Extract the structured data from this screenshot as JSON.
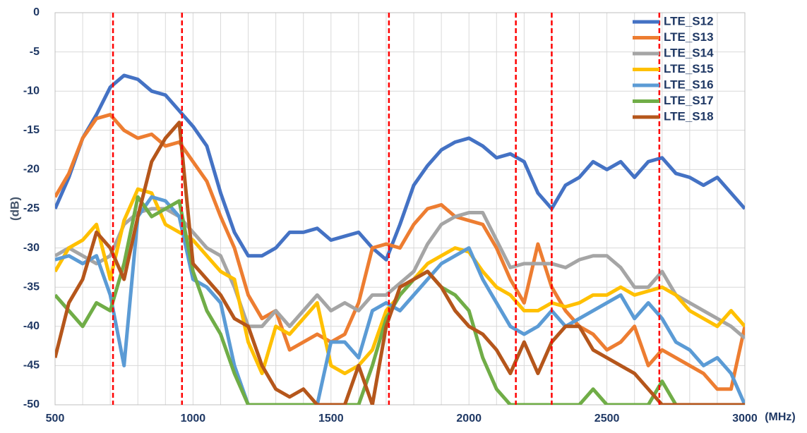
{
  "chart_data": {
    "type": "line",
    "x_label": "(MHz)",
    "y_label": "(dB)",
    "x": [
      500,
      550,
      600,
      650,
      700,
      750,
      800,
      850,
      900,
      950,
      1000,
      1050,
      1100,
      1150,
      1200,
      1250,
      1300,
      1350,
      1400,
      1450,
      1500,
      1550,
      1600,
      1650,
      1700,
      1750,
      1800,
      1850,
      1900,
      1950,
      2000,
      2050,
      2100,
      2150,
      2200,
      2250,
      2300,
      2350,
      2400,
      2450,
      2500,
      2550,
      2600,
      2650,
      2700,
      2750,
      2800,
      2850,
      2900,
      2950,
      3000
    ],
    "series": [
      {
        "name": "LTE_S12",
        "color": "#4472c4",
        "values": [
          -25,
          -21,
          -16,
          -13,
          -9.5,
          -8,
          -8.5,
          -10,
          -10.5,
          -12.5,
          -14.5,
          -17,
          -23,
          -28,
          -31,
          -31,
          -30,
          -28,
          -28,
          -27.5,
          -29,
          -28.5,
          -28,
          -30,
          -31.5,
          -27,
          -22,
          -19.5,
          -17.5,
          -16.5,
          -16,
          -17,
          -18.5,
          -18,
          -19,
          -23,
          -25,
          -22,
          -21,
          -19,
          -20,
          -19,
          -21,
          -19,
          -18.5,
          -20.5,
          -21,
          -22,
          -21,
          -23,
          -25
        ]
      },
      {
        "name": "LTE_S13",
        "color": "#ed7d31",
        "values": [
          -23.5,
          -20.5,
          -16,
          -13.5,
          -13,
          -15,
          -16,
          -15.5,
          -17,
          -16.5,
          -19,
          -21.5,
          -26,
          -30,
          -36,
          -39,
          -38,
          -43,
          -42,
          -41,
          -42,
          -41,
          -37,
          -30,
          -29.5,
          -30,
          -27,
          -25,
          -24.5,
          -26,
          -26.5,
          -27,
          -30,
          -34,
          -37,
          -29.5,
          -35,
          -38,
          -40,
          -41,
          -43,
          -42,
          -40,
          -45,
          -43,
          -44,
          -45,
          -46,
          -48,
          -48,
          -40
        ]
      },
      {
        "name": "LTE_S14",
        "color": "#a5a5a5",
        "values": [
          -31,
          -30,
          -31,
          -32,
          -31,
          -27,
          -25.5,
          -25,
          -25,
          -26,
          -28,
          -30,
          -31,
          -35,
          -40,
          -40,
          -38,
          -40,
          -38,
          -36,
          -38,
          -37,
          -38,
          -36,
          -36,
          -34.5,
          -33,
          -29.5,
          -27,
          -26,
          -25.5,
          -25.5,
          -29,
          -32.5,
          -32,
          -32,
          -32,
          -32.5,
          -31.5,
          -31,
          -31,
          -32.5,
          -35,
          -35,
          -33,
          -36,
          -37,
          -38,
          -39,
          -40,
          -41.5
        ]
      },
      {
        "name": "LTE_S15",
        "color": "#ffc000",
        "values": [
          -33,
          -30,
          -29,
          -27,
          -34,
          -26.5,
          -22.5,
          -23,
          -27,
          -28,
          -29,
          -31,
          -33,
          -34,
          -42,
          -46,
          -40,
          -41,
          -39,
          -37,
          -45,
          -46,
          -45,
          -43,
          -38,
          -36,
          -34,
          -32,
          -31,
          -30,
          -30.5,
          -33,
          -35,
          -36,
          -38,
          -38,
          -37,
          -37.5,
          -37,
          -36,
          -36,
          -35,
          -36,
          -35.5,
          -35,
          -36,
          -38,
          -39,
          -40,
          -38,
          -40
        ]
      },
      {
        "name": "LTE_S16",
        "color": "#5b9bd5",
        "values": [
          -31.5,
          -31,
          -32,
          -31,
          -36,
          -45,
          -26,
          -23.5,
          -24,
          -26,
          -34,
          -35,
          -37,
          -45,
          -50,
          -50,
          -50,
          -50,
          -50,
          -50,
          -42,
          -42,
          -44,
          -38,
          -37,
          -38,
          -36,
          -34,
          -32,
          -31,
          -30,
          -34,
          -37,
          -40,
          -41,
          -40,
          -38,
          -40,
          -39,
          -38,
          -37,
          -36,
          -39,
          -37,
          -39,
          -42,
          -43,
          -45,
          -44,
          -46,
          -50
        ]
      },
      {
        "name": "LTE_S17",
        "color": "#70ad47",
        "values": [
          -36,
          -38,
          -40,
          -37,
          -38,
          -32,
          -23.5,
          -26,
          -25,
          -24,
          -33,
          -38,
          -41,
          -46,
          -50,
          -50,
          -50,
          -50,
          -50,
          -50,
          -50,
          -50,
          -50,
          -45,
          -39,
          -36,
          -34,
          -33,
          -35,
          -36,
          -38,
          -44,
          -48,
          -50,
          -50,
          -50,
          -50,
          -50,
          -50,
          -48,
          -50,
          -50,
          -50,
          -50,
          -47,
          -50,
          -50,
          -50,
          -50,
          -50,
          -50
        ]
      },
      {
        "name": "LTE_S18",
        "color": "#b5561b",
        "values": [
          -44,
          -37,
          -34,
          -28,
          -30,
          -34,
          -26,
          -19,
          -16,
          -14,
          -32,
          -34,
          -36,
          -39,
          -40,
          -45,
          -48,
          -49,
          -48,
          -50,
          -50,
          -50,
          -45,
          -50,
          -40,
          -35,
          -34,
          -33,
          -35,
          -38,
          -40,
          -41,
          -43,
          -46,
          -42,
          -46,
          -42,
          -40,
          -40,
          -43,
          -44,
          -45,
          -46,
          -48,
          -50,
          -50,
          -50,
          -50,
          -50,
          -50,
          -50
        ]
      }
    ],
    "xlim": [
      500,
      3000
    ],
    "ylim": [
      -50,
      0
    ],
    "xticks": [
      500,
      1000,
      1500,
      2000,
      2500,
      3000
    ],
    "xminor": [
      600,
      700,
      800,
      900,
      1100,
      1200,
      1300,
      1400,
      1600,
      1700,
      1800,
      1900,
      2100,
      2200,
      2300,
      2400,
      2600,
      2700,
      2800,
      2900
    ],
    "yticks": [
      0,
      -5,
      -10,
      -15,
      -20,
      -25,
      -30,
      -35,
      -40,
      -45,
      -50
    ],
    "vlines": [
      710,
      960,
      1710,
      2170,
      2300,
      2690
    ],
    "vline_color": "#ff0000",
    "grid": true,
    "legend": "top-right"
  }
}
